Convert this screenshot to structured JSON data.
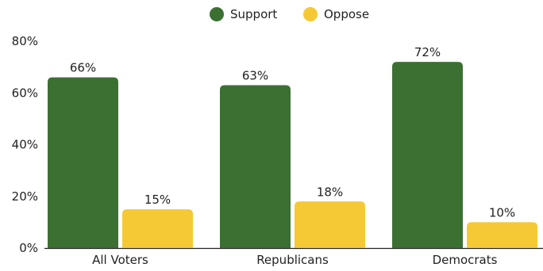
{
  "chart_data": {
    "type": "bar",
    "categories": [
      "All Voters",
      "Republicans",
      "Democrats"
    ],
    "series": [
      {
        "name": "Support",
        "values": [
          66,
          63,
          72
        ],
        "labels": [
          "66%",
          "63%",
          "72%"
        ],
        "color": "#3c7033"
      },
      {
        "name": "Oppose",
        "values": [
          15,
          18,
          10
        ],
        "labels": [
          "15%",
          "18%",
          "10%"
        ],
        "color": "#f5c935"
      }
    ],
    "ylim": [
      0,
      80
    ],
    "yticks": [
      0,
      20,
      40,
      60,
      80
    ],
    "ytick_labels": [
      "0%",
      "20%",
      "40%",
      "60%",
      "80%"
    ],
    "grid": false,
    "legend_position": "top-center",
    "title": "",
    "xlabel": "",
    "ylabel": ""
  }
}
